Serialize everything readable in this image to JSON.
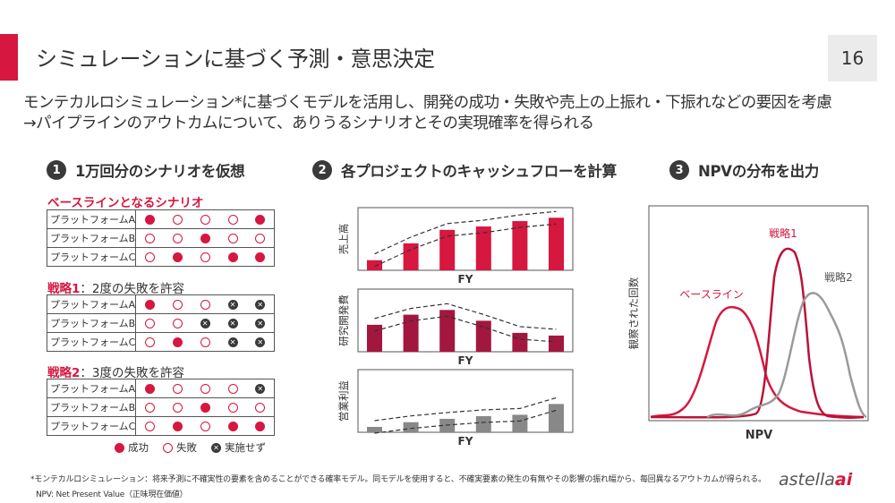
{
  "slide": {
    "title": "シミュレーションに基づく予測・意思決定",
    "page_number": "16",
    "intro_line1": "モンテカルロシミュレーション*に基づくモデルを活用し、開発の成功・失敗や売上の上振れ・下振れなどの要因を考慮",
    "intro_line2": "→パイプラインのアウトカムについて、ありうるシナリオとその実現確率を得られる"
  },
  "section1": {
    "number": "1",
    "heading": "1万回分のシナリオを仮想",
    "scenarios": [
      {
        "title": "ベースラインとなるシナリオ",
        "title_suffix": "",
        "rows": [
          {
            "label": "プラットフォームA",
            "marks": [
              "s",
              "f",
              "f",
              "f",
              "s"
            ]
          },
          {
            "label": "プラットフォームB",
            "marks": [
              "f",
              "f",
              "s",
              "f",
              "f"
            ]
          },
          {
            "label": "プラットフォームC",
            "marks": [
              "f",
              "s",
              "f",
              "s",
              "s"
            ]
          }
        ]
      },
      {
        "title": "戦略1",
        "title_suffix": "：2度の失敗を許容",
        "rows": [
          {
            "label": "プラットフォームA",
            "marks": [
              "s",
              "f",
              "f",
              "x",
              "x"
            ]
          },
          {
            "label": "プラットフォームB",
            "marks": [
              "f",
              "f",
              "x",
              "x",
              "x"
            ]
          },
          {
            "label": "プラットフォームC",
            "marks": [
              "f",
              "s",
              "f",
              "x",
              "x"
            ]
          }
        ]
      },
      {
        "title": "戦略2",
        "title_suffix": "：3度の失敗を許容",
        "rows": [
          {
            "label": "プラットフォームA",
            "marks": [
              "s",
              "f",
              "f",
              "f",
              "x"
            ]
          },
          {
            "label": "プラットフォームB",
            "marks": [
              "f",
              "f",
              "s",
              "f",
              "f"
            ]
          },
          {
            "label": "プラットフォームC",
            "marks": [
              "f",
              "s",
              "f",
              "s",
              "s"
            ]
          }
        ]
      }
    ],
    "legend": {
      "success": "成功",
      "failure": "失敗",
      "not_run": "実施せず"
    }
  },
  "section2": {
    "number": "2",
    "heading": "各プロジェクトのキャッシュフローを計算",
    "chart_data": [
      {
        "type": "bar",
        "ylabel": "売上高",
        "xlabel": "FY",
        "values": [
          1.5,
          4.0,
          6.0,
          6.5,
          7.3,
          7.8
        ],
        "color": "#d6173f"
      },
      {
        "type": "bar",
        "ylabel": "研究開発費",
        "xlabel": "FY",
        "values": [
          4.0,
          5.5,
          6.2,
          4.6,
          2.8,
          2.4
        ],
        "color": "#a3173e"
      },
      {
        "type": "bar",
        "ylabel": "営業利益",
        "xlabel": "FY",
        "values": [
          0.8,
          1.5,
          2.0,
          2.4,
          2.6,
          4.2
        ],
        "color": "#888888"
      }
    ]
  },
  "section3": {
    "number": "3",
    "heading": "NPVの分布を出力",
    "chart_data": {
      "type": "line",
      "xlabel": "NPV",
      "ylabel": "観察された回数",
      "series": [
        {
          "name": "ベースライン",
          "color": "#d6173f"
        },
        {
          "name": "戦略1",
          "color": "#d6173f"
        },
        {
          "name": "戦略2",
          "color": "#999999"
        }
      ]
    }
  },
  "footnotes": {
    "note1": "*モンテカルロシミュレーション：将来予測に不確実性の要素を含めることができる確率モデル。同モデルを使用すると、不確実要素の発生の有無やその影響の振れ幅から、毎回異なるアウトカムが得られる。",
    "note2": "NPV: Net Present Value（正味現在価値）"
  },
  "logo": {
    "text": "astella",
    "accent": "ai"
  }
}
